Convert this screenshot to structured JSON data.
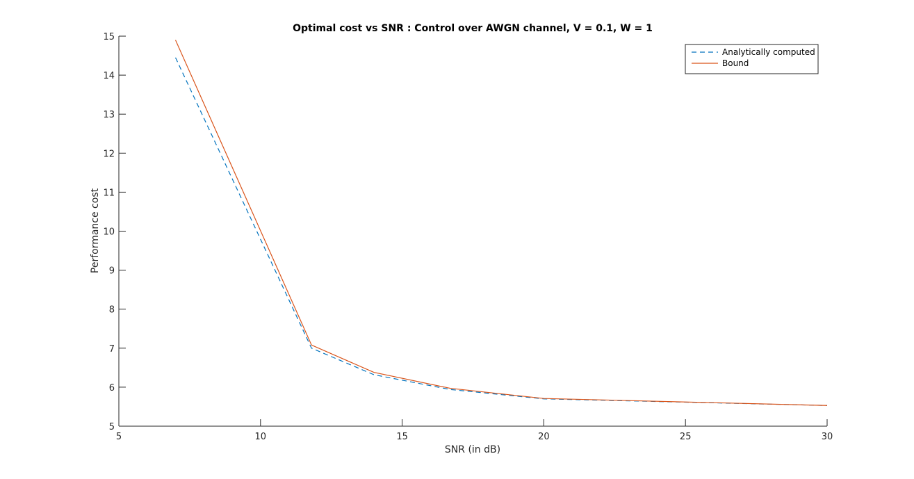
{
  "chart_data": {
    "type": "line",
    "title": "Optimal cost vs SNR : Control over AWGN channel, V = 0.1, W = 1",
    "xlabel": "SNR (in dB)",
    "ylabel": "Performance cost",
    "xlim": [
      5,
      30
    ],
    "ylim": [
      5,
      15
    ],
    "xticks": [
      5,
      10,
      15,
      20,
      25,
      30
    ],
    "yticks": [
      5,
      6,
      7,
      8,
      9,
      10,
      11,
      12,
      13,
      14,
      15
    ],
    "grid": false,
    "legend_position": "top-right",
    "series": [
      {
        "name": "Analytically computed",
        "color": "#0072BD",
        "line_style": "dashed",
        "x": [
          7,
          11.8,
          14,
          16.7,
          20,
          30
        ],
        "y": [
          14.45,
          7.0,
          6.32,
          5.94,
          5.7,
          5.53
        ]
      },
      {
        "name": "Bound",
        "color": "#D95319",
        "line_style": "solid",
        "x": [
          7,
          11.8,
          14,
          16.7,
          20,
          30
        ],
        "y": [
          14.9,
          7.08,
          6.38,
          5.97,
          5.71,
          5.53
        ]
      }
    ]
  }
}
